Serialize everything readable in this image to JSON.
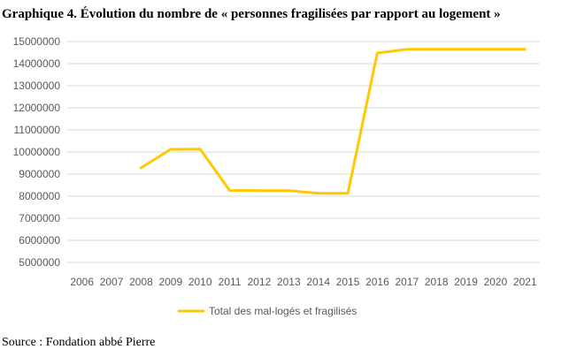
{
  "title": "Graphique 4. Évolution du nombre de « personnes fragilisées par rapport au logement »",
  "source": "Source : Fondation abbé Pierre",
  "chart_data": {
    "type": "line",
    "categories": [
      "2006",
      "2007",
      "2008",
      "2009",
      "2010",
      "2011",
      "2012",
      "2013",
      "2014",
      "2015",
      "2016",
      "2017",
      "2018",
      "2019",
      "2020",
      "2021"
    ],
    "series": [
      {
        "name": "Total des mal-logés et fragilisés",
        "color": "#FFC800",
        "values": [
          null,
          null,
          9280000,
          10120000,
          10130000,
          8260000,
          8250000,
          8250000,
          8130000,
          8130000,
          14480000,
          14650000,
          14650000,
          14650000,
          14650000,
          14650000
        ]
      }
    ],
    "ylim": [
      5000000,
      15000000
    ],
    "yticks": [
      5000000,
      6000000,
      7000000,
      8000000,
      9000000,
      10000000,
      11000000,
      12000000,
      13000000,
      14000000,
      15000000
    ],
    "grid": "horizontal",
    "legend_position": "bottom"
  }
}
